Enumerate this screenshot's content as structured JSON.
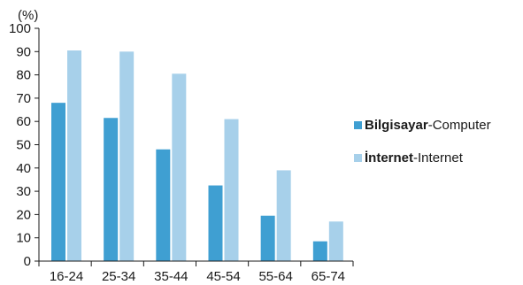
{
  "chart_data": {
    "type": "bar",
    "title": "",
    "ylabel": "(%)",
    "xlabel": "",
    "ylim": [
      0,
      100
    ],
    "yticks": [
      0,
      10,
      20,
      30,
      40,
      50,
      60,
      70,
      80,
      90,
      100
    ],
    "categories": [
      "16-24",
      "25-34",
      "35-44",
      "45-54",
      "55-64",
      "65-74"
    ],
    "series": [
      {
        "name": "Bilgisayar-Computer",
        "name_bold": "Bilgisayar",
        "name_rest": "-Computer",
        "color": "#3f9fd2",
        "values": [
          68,
          61.5,
          48,
          32.5,
          19.5,
          8.5
        ]
      },
      {
        "name": "İnternet-Internet",
        "name_bold": "İnternet",
        "name_rest": "-Internet",
        "color": "#a7d0ea",
        "values": [
          90.5,
          90,
          80.5,
          61,
          39,
          17
        ]
      }
    ],
    "grid": false,
    "legend_position": "right"
  }
}
